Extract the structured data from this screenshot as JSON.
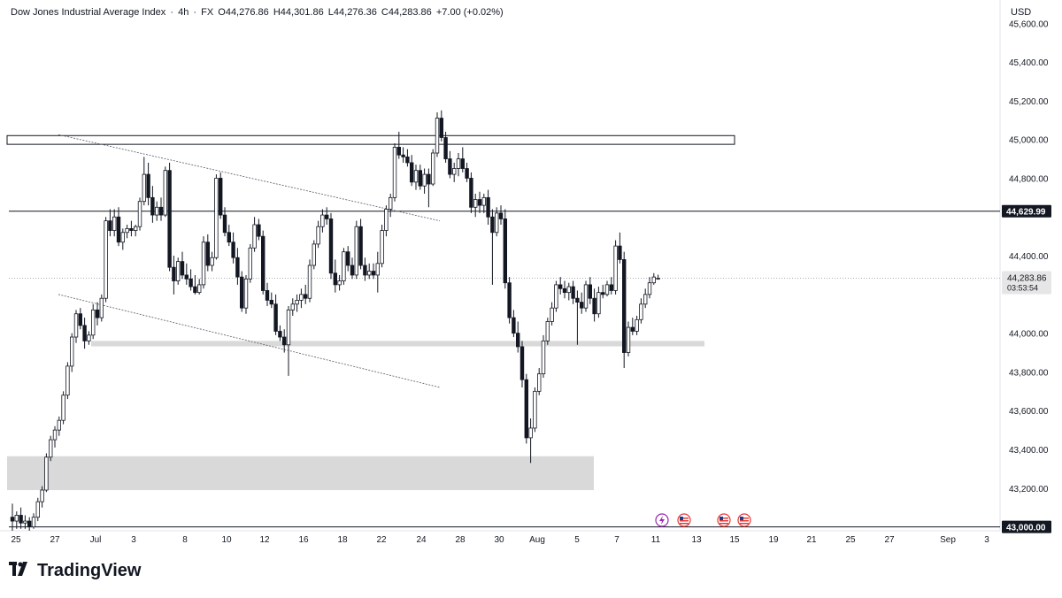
{
  "header": {
    "symbol": "Dow Jones Industrial Average Index",
    "interval": "4h",
    "source": "FX",
    "open": "O44,276.86",
    "high": "H44,301.86",
    "low": "L44,276.36",
    "close": "C44,283.86",
    "change": "+7.00 (+0.02%)"
  },
  "currency": "USD",
  "branding": "TradingView",
  "chart_data": {
    "type": "candlestick",
    "title": "Dow Jones Industrial Average Index · 4h · FX",
    "x_ticks": [
      "25",
      "27",
      "Jul",
      "3",
      "8",
      "10",
      "12",
      "16",
      "18",
      "22",
      "24",
      "28",
      "30",
      "Aug",
      "5",
      "7",
      "11",
      "13",
      "15",
      "19",
      "21",
      "25",
      "27",
      "Sep",
      "3"
    ],
    "y_ticks": [
      "45,600.00",
      "45,400.00",
      "45,200.00",
      "45,000.00",
      "44,800.00",
      "44,400.00",
      "44,000.00",
      "43,800.00",
      "43,600.00",
      "43,400.00",
      "43,200.00"
    ],
    "ylim": [
      42980,
      45720
    ],
    "last_price": "44,283.86",
    "countdown": "03:53:54",
    "level_label": "44,629.99",
    "bottom_level_label": "43,000.00",
    "horizontal_levels": [
      44629.99,
      43000
    ],
    "zones": [
      {
        "type": "resistance",
        "from": 44975,
        "to": 45020
      },
      {
        "type": "support",
        "from": 43932,
        "to": 43960
      },
      {
        "type": "demand",
        "from": 43190,
        "to": 43365
      }
    ],
    "trendlines": [
      {
        "from": [
          "Jun 27",
          45025
        ],
        "to": [
          "Jul 22",
          44580
        ]
      },
      {
        "from": [
          "Jun 27",
          44200
        ],
        "to": [
          "Jul 22",
          43720
        ]
      }
    ],
    "candles": [
      {
        "o": 43050,
        "h": 43120,
        "l": 42980,
        "c": 43030
      },
      {
        "o": 43030,
        "h": 43080,
        "l": 42990,
        "c": 43060
      },
      {
        "o": 43060,
        "h": 43100,
        "l": 42990,
        "c": 43020
      },
      {
        "o": 43020,
        "h": 43060,
        "l": 42990,
        "c": 43030
      },
      {
        "o": 43030,
        "h": 43050,
        "l": 42980,
        "c": 43000
      },
      {
        "o": 43000,
        "h": 43070,
        "l": 42990,
        "c": 43050
      },
      {
        "o": 43050,
        "h": 43150,
        "l": 43030,
        "c": 43130
      },
      {
        "o": 43130,
        "h": 43210,
        "l": 43100,
        "c": 43190
      },
      {
        "o": 43190,
        "h": 43380,
        "l": 43180,
        "c": 43360
      },
      {
        "o": 43360,
        "h": 43470,
        "l": 43340,
        "c": 43450
      },
      {
        "o": 43450,
        "h": 43520,
        "l": 43410,
        "c": 43500
      },
      {
        "o": 43500,
        "h": 43570,
        "l": 43470,
        "c": 43550
      },
      {
        "o": 43550,
        "h": 43700,
        "l": 43530,
        "c": 43680
      },
      {
        "o": 43680,
        "h": 43850,
        "l": 43660,
        "c": 43830
      },
      {
        "o": 43830,
        "h": 44000,
        "l": 43800,
        "c": 43980
      },
      {
        "o": 43980,
        "h": 44120,
        "l": 43950,
        "c": 44100
      },
      {
        "o": 44100,
        "h": 44130,
        "l": 44020,
        "c": 44040
      },
      {
        "o": 44040,
        "h": 44080,
        "l": 43920,
        "c": 43960
      },
      {
        "o": 43960,
        "h": 44010,
        "l": 43940,
        "c": 43990
      },
      {
        "o": 43990,
        "h": 44150,
        "l": 43970,
        "c": 44120
      },
      {
        "o": 44120,
        "h": 44160,
        "l": 44040,
        "c": 44080
      },
      {
        "o": 44080,
        "h": 44200,
        "l": 44060,
        "c": 44180
      },
      {
        "o": 44180,
        "h": 44600,
        "l": 44160,
        "c": 44580
      },
      {
        "o": 44580,
        "h": 44640,
        "l": 44500,
        "c": 44530
      },
      {
        "o": 44530,
        "h": 44640,
        "l": 44500,
        "c": 44600
      },
      {
        "o": 44600,
        "h": 44650,
        "l": 44450,
        "c": 44470
      },
      {
        "o": 44470,
        "h": 44540,
        "l": 44430,
        "c": 44520
      },
      {
        "o": 44520,
        "h": 44560,
        "l": 44490,
        "c": 44540
      },
      {
        "o": 44540,
        "h": 44580,
        "l": 44500,
        "c": 44530
      },
      {
        "o": 44530,
        "h": 44560,
        "l": 44500,
        "c": 44550
      },
      {
        "o": 44550,
        "h": 44700,
        "l": 44530,
        "c": 44680
      },
      {
        "o": 44680,
        "h": 44910,
        "l": 44660,
        "c": 44820
      },
      {
        "o": 44820,
        "h": 44880,
        "l": 44660,
        "c": 44700
      },
      {
        "o": 44700,
        "h": 44760,
        "l": 44570,
        "c": 44610
      },
      {
        "o": 44610,
        "h": 44680,
        "l": 44580,
        "c": 44650
      },
      {
        "o": 44650,
        "h": 44700,
        "l": 44580,
        "c": 44610
      },
      {
        "o": 44610,
        "h": 44860,
        "l": 44600,
        "c": 44840
      },
      {
        "o": 44840,
        "h": 44880,
        "l": 44320,
        "c": 44340
      },
      {
        "o": 44340,
        "h": 44400,
        "l": 44200,
        "c": 44270
      },
      {
        "o": 44270,
        "h": 44390,
        "l": 44250,
        "c": 44370
      },
      {
        "o": 44370,
        "h": 44420,
        "l": 44280,
        "c": 44300
      },
      {
        "o": 44300,
        "h": 44360,
        "l": 44250,
        "c": 44280
      },
      {
        "o": 44280,
        "h": 44330,
        "l": 44220,
        "c": 44240
      },
      {
        "o": 44240,
        "h": 44300,
        "l": 44200,
        "c": 44210
      },
      {
        "o": 44210,
        "h": 44280,
        "l": 44200,
        "c": 44250
      },
      {
        "o": 44250,
        "h": 44500,
        "l": 44230,
        "c": 44470
      },
      {
        "o": 44470,
        "h": 44510,
        "l": 44320,
        "c": 44350
      },
      {
        "o": 44350,
        "h": 44420,
        "l": 44320,
        "c": 44390
      },
      {
        "o": 44390,
        "h": 44820,
        "l": 44380,
        "c": 44800
      },
      {
        "o": 44800,
        "h": 44830,
        "l": 44590,
        "c": 44610
      },
      {
        "o": 44610,
        "h": 44650,
        "l": 44500,
        "c": 44520
      },
      {
        "o": 44520,
        "h": 44560,
        "l": 44450,
        "c": 44470
      },
      {
        "o": 44470,
        "h": 44520,
        "l": 44360,
        "c": 44390
      },
      {
        "o": 44390,
        "h": 44440,
        "l": 44250,
        "c": 44290
      },
      {
        "o": 44290,
        "h": 44320,
        "l": 44110,
        "c": 44130
      },
      {
        "o": 44130,
        "h": 44300,
        "l": 44100,
        "c": 44280
      },
      {
        "o": 44280,
        "h": 44460,
        "l": 44260,
        "c": 44440
      },
      {
        "o": 44440,
        "h": 44600,
        "l": 44420,
        "c": 44560
      },
      {
        "o": 44560,
        "h": 44590,
        "l": 44480,
        "c": 44500
      },
      {
        "o": 44500,
        "h": 44530,
        "l": 44200,
        "c": 44220
      },
      {
        "o": 44220,
        "h": 44260,
        "l": 44140,
        "c": 44170
      },
      {
        "o": 44170,
        "h": 44210,
        "l": 44130,
        "c": 44150
      },
      {
        "o": 44150,
        "h": 44200,
        "l": 43990,
        "c": 44010
      },
      {
        "o": 44010,
        "h": 44040,
        "l": 43960,
        "c": 43980
      },
      {
        "o": 43980,
        "h": 44020,
        "l": 43900,
        "c": 43940
      },
      {
        "o": 43940,
        "h": 44140,
        "l": 43780,
        "c": 44120
      },
      {
        "o": 44120,
        "h": 44180,
        "l": 44090,
        "c": 44150
      },
      {
        "o": 44150,
        "h": 44200,
        "l": 44110,
        "c": 44170
      },
      {
        "o": 44170,
        "h": 44230,
        "l": 44130,
        "c": 44200
      },
      {
        "o": 44200,
        "h": 44250,
        "l": 44150,
        "c": 44180
      },
      {
        "o": 44180,
        "h": 44380,
        "l": 44160,
        "c": 44350
      },
      {
        "o": 44350,
        "h": 44480,
        "l": 44330,
        "c": 44460
      },
      {
        "o": 44460,
        "h": 44580,
        "l": 44440,
        "c": 44550
      },
      {
        "o": 44550,
        "h": 44640,
        "l": 44520,
        "c": 44610
      },
      {
        "o": 44610,
        "h": 44650,
        "l": 44560,
        "c": 44590
      },
      {
        "o": 44590,
        "h": 44620,
        "l": 44280,
        "c": 44310
      },
      {
        "o": 44310,
        "h": 44380,
        "l": 44210,
        "c": 44250
      },
      {
        "o": 44250,
        "h": 44300,
        "l": 44220,
        "c": 44270
      },
      {
        "o": 44270,
        "h": 44440,
        "l": 44250,
        "c": 44420
      },
      {
        "o": 44420,
        "h": 44450,
        "l": 44320,
        "c": 44350
      },
      {
        "o": 44350,
        "h": 44390,
        "l": 44280,
        "c": 44300
      },
      {
        "o": 44300,
        "h": 44580,
        "l": 44280,
        "c": 44550
      },
      {
        "o": 44550,
        "h": 44590,
        "l": 44330,
        "c": 44350
      },
      {
        "o": 44350,
        "h": 44390,
        "l": 44270,
        "c": 44300
      },
      {
        "o": 44300,
        "h": 44360,
        "l": 44280,
        "c": 44320
      },
      {
        "o": 44320,
        "h": 44360,
        "l": 44280,
        "c": 44300
      },
      {
        "o": 44300,
        "h": 44420,
        "l": 44210,
        "c": 44360
      },
      {
        "o": 44360,
        "h": 44560,
        "l": 44340,
        "c": 44530
      },
      {
        "o": 44530,
        "h": 44660,
        "l": 44500,
        "c": 44640
      },
      {
        "o": 44640,
        "h": 44720,
        "l": 44600,
        "c": 44700
      },
      {
        "o": 44700,
        "h": 44980,
        "l": 44680,
        "c": 44960
      },
      {
        "o": 44960,
        "h": 45040,
        "l": 44900,
        "c": 44920
      },
      {
        "o": 44920,
        "h": 44960,
        "l": 44880,
        "c": 44910
      },
      {
        "o": 44910,
        "h": 44950,
        "l": 44860,
        "c": 44880
      },
      {
        "o": 44880,
        "h": 44920,
        "l": 44760,
        "c": 44780
      },
      {
        "o": 44780,
        "h": 44870,
        "l": 44740,
        "c": 44840
      },
      {
        "o": 44840,
        "h": 44870,
        "l": 44740,
        "c": 44760
      },
      {
        "o": 44760,
        "h": 44850,
        "l": 44720,
        "c": 44820
      },
      {
        "o": 44820,
        "h": 44850,
        "l": 44650,
        "c": 44770
      },
      {
        "o": 44770,
        "h": 44950,
        "l": 44760,
        "c": 44930
      },
      {
        "o": 44930,
        "h": 45140,
        "l": 44910,
        "c": 45110
      },
      {
        "o": 45110,
        "h": 45150,
        "l": 44990,
        "c": 45010
      },
      {
        "o": 45010,
        "h": 45040,
        "l": 44880,
        "c": 44900
      },
      {
        "o": 44900,
        "h": 44940,
        "l": 44800,
        "c": 44820
      },
      {
        "o": 44820,
        "h": 44880,
        "l": 44780,
        "c": 44850
      },
      {
        "o": 44850,
        "h": 44930,
        "l": 44810,
        "c": 44900
      },
      {
        "o": 44900,
        "h": 44960,
        "l": 44830,
        "c": 44850
      },
      {
        "o": 44850,
        "h": 44880,
        "l": 44780,
        "c": 44800
      },
      {
        "o": 44800,
        "h": 44830,
        "l": 44620,
        "c": 44650
      },
      {
        "o": 44650,
        "h": 44720,
        "l": 44600,
        "c": 44690
      },
      {
        "o": 44690,
        "h": 44730,
        "l": 44620,
        "c": 44660
      },
      {
        "o": 44660,
        "h": 44720,
        "l": 44620,
        "c": 44700
      },
      {
        "o": 44700,
        "h": 44740,
        "l": 44560,
        "c": 44600
      },
      {
        "o": 44600,
        "h": 44640,
        "l": 44250,
        "c": 44520
      },
      {
        "o": 44520,
        "h": 44650,
        "l": 44500,
        "c": 44620
      },
      {
        "o": 44620,
        "h": 44660,
        "l": 44560,
        "c": 44590
      },
      {
        "o": 44590,
        "h": 44640,
        "l": 44230,
        "c": 44260
      },
      {
        "o": 44260,
        "h": 44290,
        "l": 44050,
        "c": 44080
      },
      {
        "o": 44080,
        "h": 44120,
        "l": 43980,
        "c": 44000
      },
      {
        "o": 44000,
        "h": 44060,
        "l": 43900,
        "c": 43930
      },
      {
        "o": 43930,
        "h": 43960,
        "l": 43720,
        "c": 43760
      },
      {
        "o": 43760,
        "h": 43790,
        "l": 43430,
        "c": 43460
      },
      {
        "o": 43460,
        "h": 43560,
        "l": 43330,
        "c": 43510
      },
      {
        "o": 43510,
        "h": 43720,
        "l": 43490,
        "c": 43700
      },
      {
        "o": 43700,
        "h": 43820,
        "l": 43680,
        "c": 43790
      },
      {
        "o": 43790,
        "h": 43990,
        "l": 43770,
        "c": 43960
      },
      {
        "o": 43960,
        "h": 44080,
        "l": 43940,
        "c": 44060
      },
      {
        "o": 44060,
        "h": 44160,
        "l": 44040,
        "c": 44130
      },
      {
        "o": 44130,
        "h": 44270,
        "l": 44110,
        "c": 44250
      },
      {
        "o": 44250,
        "h": 44290,
        "l": 44200,
        "c": 44230
      },
      {
        "o": 44230,
        "h": 44270,
        "l": 44180,
        "c": 44210
      },
      {
        "o": 44210,
        "h": 44260,
        "l": 44170,
        "c": 44240
      },
      {
        "o": 44240,
        "h": 44270,
        "l": 44150,
        "c": 44180
      },
      {
        "o": 44180,
        "h": 44220,
        "l": 43940,
        "c": 44160
      },
      {
        "o": 44160,
        "h": 44210,
        "l": 44100,
        "c": 44130
      },
      {
        "o": 44130,
        "h": 44270,
        "l": 44110,
        "c": 44250
      },
      {
        "o": 44250,
        "h": 44290,
        "l": 44150,
        "c": 44180
      },
      {
        "o": 44180,
        "h": 44230,
        "l": 44060,
        "c": 44100
      },
      {
        "o": 44100,
        "h": 44240,
        "l": 44080,
        "c": 44210
      },
      {
        "o": 44210,
        "h": 44250,
        "l": 44180,
        "c": 44200
      },
      {
        "o": 44200,
        "h": 44270,
        "l": 44190,
        "c": 44250
      },
      {
        "o": 44250,
        "h": 44290,
        "l": 44200,
        "c": 44220
      },
      {
        "o": 44220,
        "h": 44480,
        "l": 44200,
        "c": 44450
      },
      {
        "o": 44450,
        "h": 44520,
        "l": 44360,
        "c": 44380
      },
      {
        "o": 44380,
        "h": 44420,
        "l": 43820,
        "c": 43900
      },
      {
        "o": 43900,
        "h": 44060,
        "l": 43880,
        "c": 44030
      },
      {
        "o": 44030,
        "h": 44080,
        "l": 43990,
        "c": 44010
      },
      {
        "o": 44010,
        "h": 44090,
        "l": 43990,
        "c": 44070
      },
      {
        "o": 44070,
        "h": 44180,
        "l": 44050,
        "c": 44150
      },
      {
        "o": 44150,
        "h": 44230,
        "l": 44130,
        "c": 44200
      },
      {
        "o": 44200,
        "h": 44290,
        "l": 44180,
        "c": 44260
      },
      {
        "o": 44260,
        "h": 44310,
        "l": 44250,
        "c": 44290
      },
      {
        "o": 44280,
        "h": 44302,
        "l": 44276,
        "c": 44284
      }
    ]
  },
  "colors": {
    "candle": "#131722",
    "background": "#ffffff",
    "zone_fill": "#d9d9d9",
    "last_price_tag": "#e6e6e6"
  },
  "event_icons": [
    "lightning-event-icon",
    "us-flag-event-icon",
    "us-flag-event-icon",
    "us-flag-event-icon"
  ]
}
